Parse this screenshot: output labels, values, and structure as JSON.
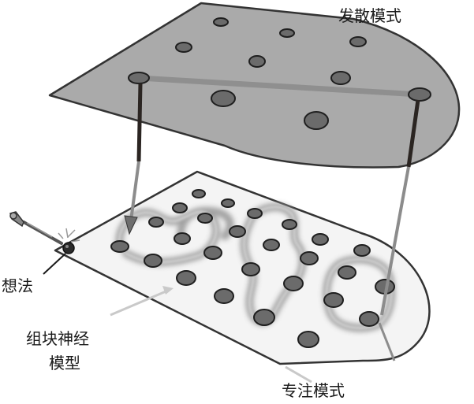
{
  "labels": {
    "diffuse_mode": "发散模式",
    "focused_mode": "专注模式",
    "idea": "想法",
    "chunk_model_line1": "组块神经",
    "chunk_model_line2": "模型"
  },
  "colors": {
    "upper_plane_fill": "#aaaaaa",
    "lower_plane_fill": "#f4f4f4",
    "plane_outline": "#333333",
    "node_fill": "#6b6b6b",
    "node_outline": "#1f1f1f",
    "connector_gray": "#8c8c8c",
    "connector_dark": "#2b2522",
    "focused_path_glow": "#9a9a9a",
    "label_text": "#1a1a1a"
  },
  "icons": {
    "pinball_plunger": "plunger-icon",
    "spark": "spark-icon"
  }
}
